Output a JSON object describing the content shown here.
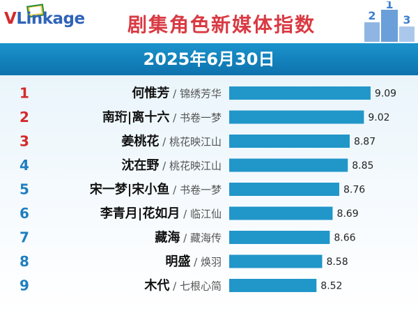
{
  "header": {
    "logo_text_v": "V",
    "logo_text_rest": "Link",
    "logo_text_tail": "age",
    "title": "剧集角色新媒体指数",
    "podium_digits": [
      "2",
      "1",
      "3"
    ]
  },
  "date": "2025年6月30日",
  "colors": {
    "bar": "#2196c9",
    "rank_red": "#d42a2a",
    "rank_blue": "#1f7fbf",
    "title_red": "#d93a43"
  },
  "chart_data": {
    "type": "bar",
    "orientation": "horizontal",
    "title": "剧集角色新媒体指数",
    "subtitle": "2025年6月30日",
    "xlim": [
      7.6,
      9.12
    ],
    "categories": [
      {
        "rank": "1",
        "name": "何惟芳",
        "drama": "锦绣芳华"
      },
      {
        "rank": "2",
        "name": "南珩|离十六",
        "drama": "书卷一梦"
      },
      {
        "rank": "3",
        "name": "姜桃花",
        "drama": "桃花映江山"
      },
      {
        "rank": "4",
        "name": "沈在野",
        "drama": "桃花映江山"
      },
      {
        "rank": "5",
        "name": "宋一梦|宋小鱼",
        "drama": "书卷一梦"
      },
      {
        "rank": "6",
        "name": "李青月|花如月",
        "drama": "临江仙"
      },
      {
        "rank": "7",
        "name": "藏海",
        "drama": "藏海传"
      },
      {
        "rank": "8",
        "name": "明盛",
        "drama": "焕羽"
      },
      {
        "rank": "9",
        "name": "木代",
        "drama": "七根心简"
      }
    ],
    "values": [
      9.09,
      9.02,
      8.87,
      8.85,
      8.76,
      8.69,
      8.66,
      8.58,
      8.52
    ],
    "value_labels": [
      "9.09",
      "9.02",
      "8.87",
      "8.85",
      "8.76",
      "8.69",
      "8.66",
      "8.58",
      "8.52"
    ],
    "grid": false,
    "legend": "none"
  }
}
